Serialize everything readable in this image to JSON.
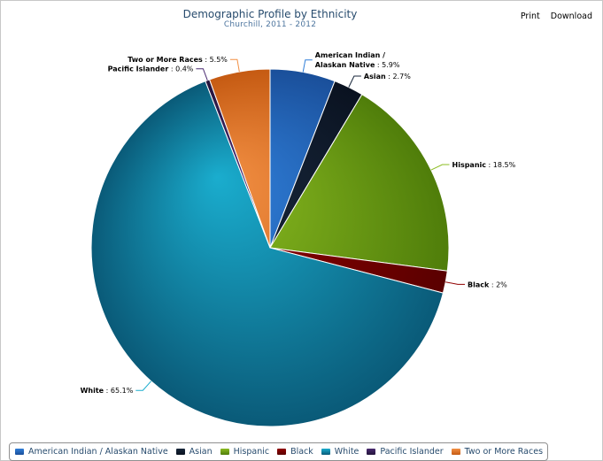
{
  "title": "Demographic Profile by Ethnicity",
  "subtitle": "Churchill, 2011 - 2012",
  "menu": {
    "print": "Print",
    "download": "Download"
  },
  "chart_data": {
    "type": "pie",
    "title": "Demographic Profile by Ethnicity",
    "subtitle": "Churchill, 2011 - 2012",
    "legend_position": "bottom-left",
    "slices": [
      {
        "name": "American Indian / Alaskan Native",
        "value": 5.9,
        "label_value": "5.9%",
        "color": "#2f7ed8",
        "dark": "#1a4f9a"
      },
      {
        "name": "Asian",
        "value": 2.7,
        "label_value": "2.7%",
        "color": "#17263a",
        "dark": "#0a1220"
      },
      {
        "name": "Hispanic",
        "value": 18.5,
        "label_value": "18.5%",
        "color": "#8bbc21",
        "dark": "#4f7d0a"
      },
      {
        "name": "Black",
        "value": 2,
        "label_value": "2%",
        "color": "#910000",
        "dark": "#5a0000"
      },
      {
        "name": "White",
        "value": 65.1,
        "label_value": "65.1%",
        "color": "#1aadce",
        "dark": "#0a5a78"
      },
      {
        "name": "Pacific Islander",
        "value": 0.4,
        "label_value": "0.4%",
        "color": "#492970",
        "dark": "#24143a"
      },
      {
        "name": "Two or More Races",
        "value": 5.5,
        "label_value": "5.5%",
        "color": "#f28f43",
        "dark": "#c55a12"
      }
    ]
  }
}
